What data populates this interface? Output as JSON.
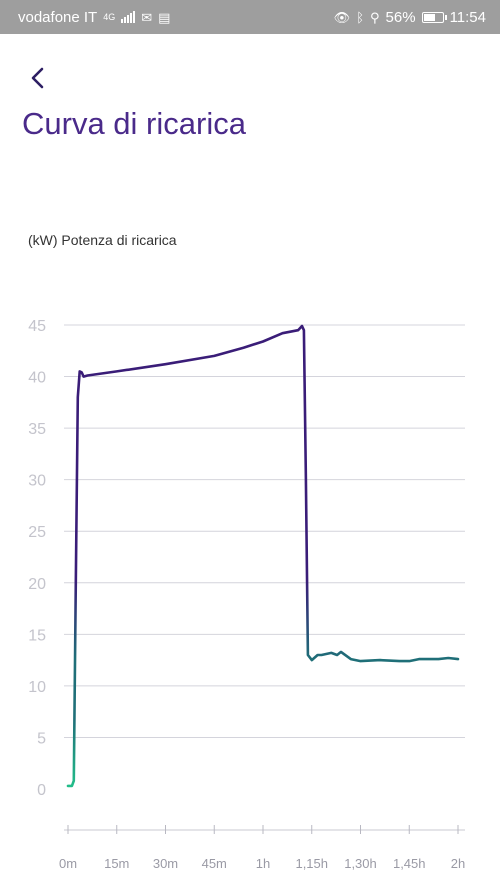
{
  "status_bar": {
    "carrier": "vodafone IT",
    "network": "4G",
    "battery_percent": "56%",
    "time": "11:54"
  },
  "header": {
    "back_icon": "chevron-left-icon",
    "title": "Curva di ricarica"
  },
  "chart_data": {
    "type": "line",
    "ylabel": "(kW) Potenza di ricarica",
    "xlabel": "",
    "ylim": [
      0,
      45
    ],
    "yticks": [
      0,
      5,
      10,
      15,
      20,
      25,
      30,
      35,
      40,
      45
    ],
    "xlim": [
      0,
      2
    ],
    "xticks": [
      0,
      0.25,
      0.5,
      0.75,
      1,
      1.25,
      1.5,
      1.75,
      2
    ],
    "xtick_labels": [
      "0m",
      "15m",
      "30m",
      "45m",
      "1h",
      "1,15h",
      "1,30h",
      "1,45h",
      "2h"
    ],
    "grid": true,
    "line_color_high": "#3a1d78",
    "line_color_low": "#1f6f78",
    "line_color_start": "#22c08a",
    "series": [
      {
        "x": [
          0,
          0.02,
          0.03,
          0.04,
          0.05,
          0.06,
          0.07,
          0.08,
          0.1,
          0.25,
          0.5,
          0.75,
          0.9,
          1.0,
          1.1,
          1.18,
          1.2,
          1.21,
          1.22,
          1.23,
          1.25,
          1.28,
          1.3,
          1.35,
          1.38,
          1.4,
          1.45,
          1.5,
          1.6,
          1.7,
          1.75,
          1.8,
          1.9,
          1.95,
          2.0
        ],
        "y": [
          0.3,
          0.3,
          0.8,
          20,
          38,
          40.5,
          40.4,
          40,
          40.1,
          40.5,
          41.2,
          42.0,
          42.8,
          43.4,
          44.2,
          44.5,
          44.9,
          44.5,
          30,
          13,
          12.5,
          13,
          13,
          13.2,
          13.0,
          13.3,
          12.6,
          12.4,
          12.5,
          12.4,
          12.4,
          12.6,
          12.6,
          12.7,
          12.6
        ]
      }
    ]
  }
}
